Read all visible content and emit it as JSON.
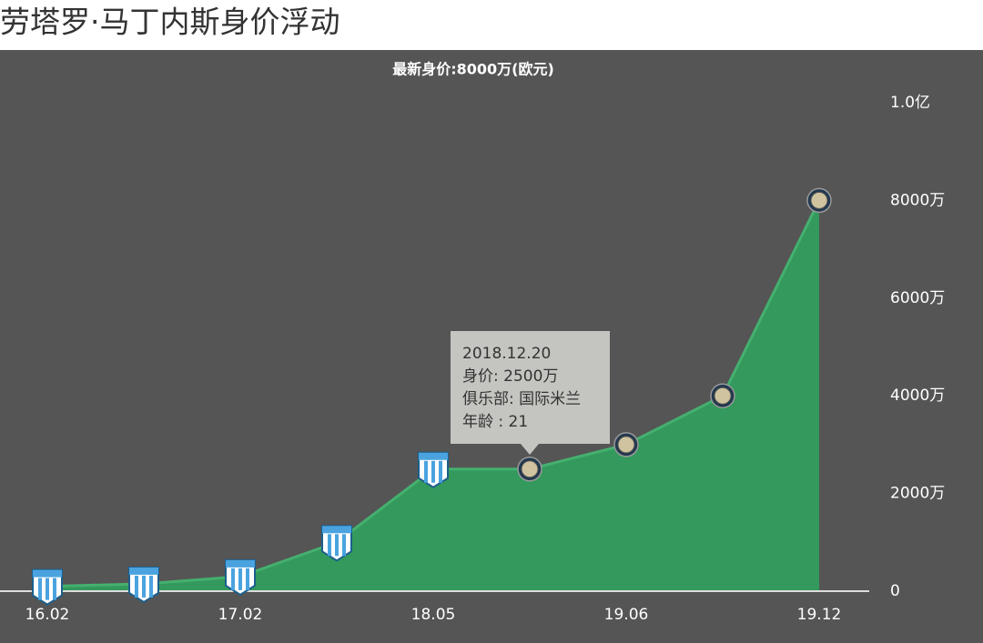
{
  "chart_data": {
    "type": "area",
    "title": "劳塔罗·马丁内斯身价浮动",
    "subtitle": "最新身价:8000万(欧元)",
    "categories": [
      "16.02",
      null,
      "17.02",
      null,
      "18.05",
      null,
      "19.06",
      null,
      "19.12"
    ],
    "values": [
      100,
      150,
      300,
      1000,
      2500,
      2500,
      3000,
      4000,
      8000
    ],
    "marker_shapes": [
      "shield",
      "shield",
      "shield",
      "shield",
      "shield",
      "circle",
      "circle",
      "circle",
      "circle"
    ],
    "color": "#33995c",
    "line_color": "#45b06f",
    "ylim": [
      0,
      10000
    ],
    "yticks": [
      0,
      {
        "value": 2000,
        "label": "2000万"
      },
      {
        "value": 4000,
        "label": "4000万"
      },
      {
        "value": 6000,
        "label": "6000万"
      },
      {
        "value": 8000,
        "label": "8000万"
      },
      {
        "value": 10000,
        "label": "1.0亿"
      }
    ],
    "tooltip": {
      "lines": [
        "2018.12.20",
        "身价: 2500万",
        "俱乐部: 国际米兰",
        "年龄 : 21"
      ]
    }
  }
}
